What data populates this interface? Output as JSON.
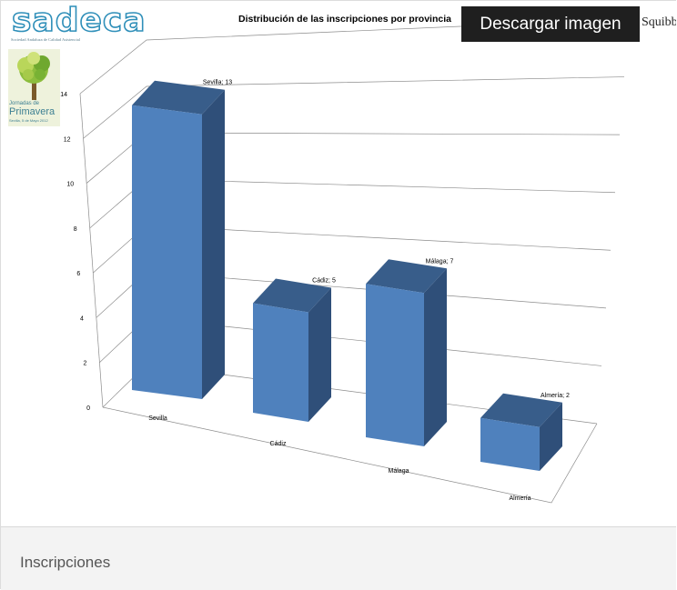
{
  "header": {
    "logo_text": "sadeca",
    "logo_subtitle": "Sociedad Andaluza de Calidad Asistencial",
    "download_label": "Descargar imagen",
    "sponsor_text": "Squibb"
  },
  "poster": {
    "line1": "Jornadas de",
    "line2": "Primavera",
    "line3": "Sevilla, 5 de Mayo 2012"
  },
  "caption": {
    "label": "Inscripciones"
  },
  "colors": {
    "bar_front": "#4f81bd",
    "bar_top": "#385d8a",
    "bar_side": "#2f4f79",
    "download_bg": "#1f1f1f",
    "caption_bg": "#f3f3f3",
    "logo": "#2f8fb9"
  },
  "chart_data": {
    "type": "bar",
    "title": "Distribución de las inscripciones por provincia",
    "categories": [
      "Sevilla",
      "Cádiz",
      "Málaga",
      "Almería"
    ],
    "values": [
      13,
      5,
      7,
      2
    ],
    "data_labels": [
      "Sevilla; 13",
      "Cádiz; 5",
      "Málaga; 7",
      "Almería; 2"
    ],
    "yticks": [
      0,
      2,
      4,
      6,
      8,
      10,
      12,
      14
    ],
    "ylim": [
      0,
      14
    ],
    "xlabel": "",
    "ylabel": "",
    "grid": true,
    "style": "3d-column",
    "legend": "none"
  }
}
